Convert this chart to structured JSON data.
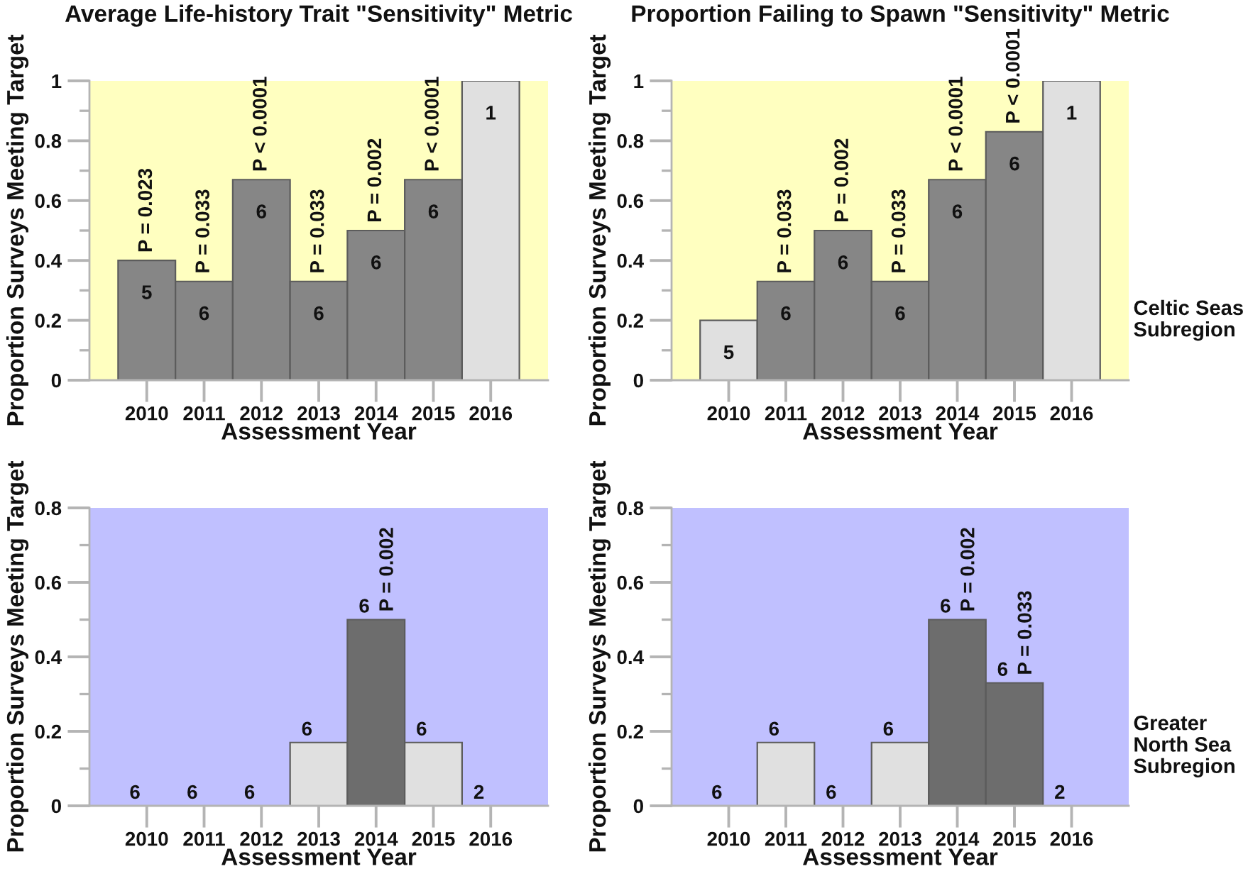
{
  "chart_data": [
    {
      "type": "bar",
      "title": "Average Life-history Trait \"Sensitivity\" Metric",
      "xlabel": "Assessment Year",
      "ylabel": "Proportion Surveys Meeting Target",
      "categories": [
        "2010",
        "2011",
        "2012",
        "2013",
        "2014",
        "2015",
        "2016"
      ],
      "values": [
        0.4,
        0.33,
        0.67,
        0.33,
        0.5,
        0.67,
        1
      ],
      "colors": [
        "#868686",
        "#868686",
        "#868686",
        "#868686",
        "#868686",
        "#868686",
        "#e0e0e0"
      ],
      "annotations": [
        {
          "text": "5",
          "x": "2010",
          "y": 0.4
        },
        {
          "text": "P = 0.023",
          "x": "2010",
          "y": 0.4
        },
        {
          "text": "6",
          "x": "2011",
          "y": 0.33
        },
        {
          "text": "P = 0.033",
          "x": "2011",
          "y": 0.33
        },
        {
          "text": "6",
          "x": "2012",
          "y": 0.67
        },
        {
          "text": "P < 0.0001",
          "x": "2012",
          "y": 0.67
        },
        {
          "text": "6",
          "x": "2013",
          "y": 0.33
        },
        {
          "text": "P = 0.033",
          "x": "2013",
          "y": 0.33
        },
        {
          "text": "6",
          "x": "2014",
          "y": 0.5
        },
        {
          "text": "P = 0.002",
          "x": "2014",
          "y": 0.5
        },
        {
          "text": "6",
          "x": "2015",
          "y": 0.67
        },
        {
          "text": "P < 0.0001",
          "x": "2015",
          "y": 0.67
        },
        {
          "text": "1",
          "x": "2016",
          "y": 1
        }
      ],
      "ylim": [
        0,
        1
      ],
      "yticks": [
        0,
        {
          "value": 0.1,
          "label": null
        },
        0.2,
        {
          "value": 0.3,
          "label": null
        },
        0.4,
        {
          "value": 0.5,
          "label": null
        },
        0.6,
        {
          "value": 0.7,
          "label": null
        },
        0.8,
        {
          "value": 0.9,
          "label": null
        },
        1
      ],
      "bands": [
        {
          "axis": "y",
          "from": 0,
          "to": 1,
          "color": "#ffffc0"
        }
      ]
    },
    {
      "type": "bar",
      "title": "Proportion Failing to Spawn \"Sensitivity\" Metric",
      "xlabel": "Assessment Year",
      "ylabel": "Proportion Surveys Meeting Target",
      "categories": [
        "2010",
        "2011",
        "2012",
        "2013",
        "2014",
        "2015",
        "2016"
      ],
      "values": [
        0.2,
        0.33,
        0.5,
        0.33,
        0.67,
        0.83,
        1
      ],
      "colors": [
        "#e0e0e0",
        "#868686",
        "#868686",
        "#868686",
        "#868686",
        "#868686",
        "#e0e0e0"
      ],
      "annotations": [
        {
          "text": "5",
          "x": "2010",
          "y": 0.2
        },
        {
          "text": "6",
          "x": "2011",
          "y": 0.33
        },
        {
          "text": "P = 0.033",
          "x": "2011",
          "y": 0.33
        },
        {
          "text": "6",
          "x": "2012",
          "y": 0.5
        },
        {
          "text": "P = 0.002",
          "x": "2012",
          "y": 0.5
        },
        {
          "text": "6",
          "x": "2013",
          "y": 0.33
        },
        {
          "text": "P = 0.033",
          "x": "2013",
          "y": 0.33
        },
        {
          "text": "6",
          "x": "2014",
          "y": 0.67
        },
        {
          "text": "P < 0.0001",
          "x": "2014",
          "y": 0.67
        },
        {
          "text": "6",
          "x": "2015",
          "y": 0.83
        },
        {
          "text": "P < 0.0001",
          "x": "2015",
          "y": 0.83
        },
        {
          "text": "1",
          "x": "2016",
          "y": 1
        },
        "Celtic Seas\nSubregion"
      ],
      "ylim": [
        0,
        1
      ],
      "yticks": [
        0,
        {
          "value": 0.1,
          "label": null
        },
        0.2,
        {
          "value": 0.3,
          "label": null
        },
        0.4,
        {
          "value": 0.5,
          "label": null
        },
        0.6,
        {
          "value": 0.7,
          "label": null
        },
        0.8,
        {
          "value": 0.9,
          "label": null
        },
        1
      ],
      "bands": [
        {
          "axis": "y",
          "from": 0,
          "to": 1,
          "color": "#ffffc0"
        }
      ]
    },
    {
      "type": "bar",
      "xlabel": "Assessment Year",
      "ylabel": "Proportion Surveys Meeting Target",
      "categories": [
        "2010",
        "2011",
        "2012",
        "2013",
        "2014",
        "2015",
        "2016"
      ],
      "values": [
        0,
        0,
        0,
        0.17,
        0.5,
        0.17,
        0
      ],
      "colors": [
        "#5c5c5c",
        "#5c5c5c",
        "#5c5c5c",
        "#e0e0e0",
        "#6d6d6d",
        "#e0e0e0",
        "#5c5c5c"
      ],
      "annotations": [
        {
          "text": "6",
          "x": "2010",
          "y": 0
        },
        {
          "text": "6",
          "x": "2011",
          "y": 0
        },
        {
          "text": "6",
          "x": "2012",
          "y": 0
        },
        {
          "text": "6",
          "x": "2013",
          "y": 0.17
        },
        {
          "text": "6",
          "x": "2014",
          "y": 0.5
        },
        {
          "text": "P = 0.002",
          "x": "2014",
          "y": 0.5
        },
        {
          "text": "6",
          "x": "2015",
          "y": 0.17
        },
        {
          "text": "2",
          "x": "2016",
          "y": 0
        }
      ],
      "ylim": [
        0,
        0.8
      ],
      "yticks": [
        0,
        {
          "value": 0.1,
          "label": null
        },
        0.2,
        {
          "value": 0.3,
          "label": null
        },
        0.4,
        {
          "value": 0.5,
          "label": null
        },
        0.6,
        {
          "value": 0.7,
          "label": null
        },
        0.8
      ],
      "bands": [
        {
          "axis": "y",
          "from": 0,
          "to": 0.8,
          "color": "#c0c0ff"
        }
      ]
    },
    {
      "type": "bar",
      "xlabel": "Assessment Year",
      "ylabel": "Proportion Surveys Meeting Target",
      "categories": [
        "2010",
        "2011",
        "2012",
        "2013",
        "2014",
        "2015",
        "2016"
      ],
      "values": [
        0,
        0.17,
        0,
        0.17,
        0.5,
        0.33,
        0
      ],
      "colors": [
        "#5c5c5c",
        "#e0e0e0",
        "#5c5c5c",
        "#e0e0e0",
        "#6d6d6d",
        "#6d6d6d",
        "#5c5c5c"
      ],
      "annotations": [
        {
          "text": "6",
          "x": "2010",
          "y": 0
        },
        {
          "text": "6",
          "x": "2011",
          "y": 0.17
        },
        {
          "text": "6",
          "x": "2012",
          "y": 0
        },
        {
          "text": "6",
          "x": "2013",
          "y": 0.17
        },
        {
          "text": "6",
          "x": "2014",
          "y": 0.5
        },
        {
          "text": "P = 0.002",
          "x": "2014",
          "y": 0.5
        },
        {
          "text": "6",
          "x": "2015",
          "y": 0.33
        },
        {
          "text": "P = 0.033",
          "x": "2015",
          "y": 0.33
        },
        {
          "text": "2",
          "x": "2016",
          "y": 0
        },
        "Greater\nNorth Sea\nSubregion"
      ],
      "ylim": [
        0,
        0.8
      ],
      "yticks": [
        0,
        {
          "value": 0.1,
          "label": null
        },
        0.2,
        {
          "value": 0.3,
          "label": null
        },
        0.4,
        {
          "value": 0.5,
          "label": null
        },
        0.6,
        {
          "value": 0.7,
          "label": null
        },
        0.8
      ],
      "bands": [
        {
          "axis": "y",
          "from": 0,
          "to": 0.8,
          "color": "#c0c0ff"
        }
      ]
    }
  ]
}
